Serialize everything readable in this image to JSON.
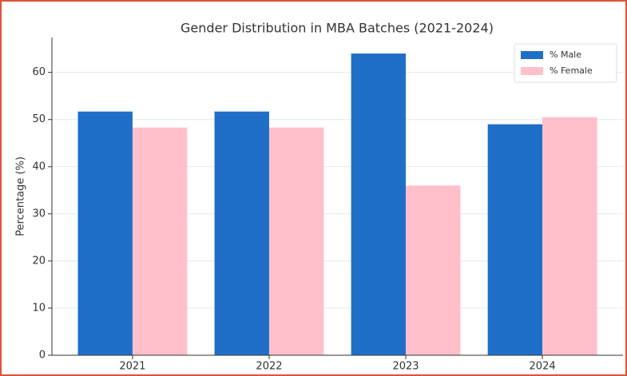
{
  "chart_data": {
    "type": "bar",
    "title": "Gender Distribution in MBA Batches (2021-2024)",
    "ylabel": "Percentage (%)",
    "categories": [
      "2021",
      "2022",
      "2023",
      "2024"
    ],
    "series": [
      {
        "name": "% Male",
        "color": "#1f6fc8",
        "values": [
          51.7,
          51.7,
          64,
          49
        ]
      },
      {
        "name": "% Female",
        "color": "#ffc0cb",
        "values": [
          48.3,
          48.3,
          36,
          50.5
        ]
      }
    ],
    "ylim": [
      0,
      67.4
    ],
    "yticks": [
      0,
      10,
      20,
      30,
      40,
      50,
      60
    ],
    "grid": true,
    "legend": "upper right"
  }
}
